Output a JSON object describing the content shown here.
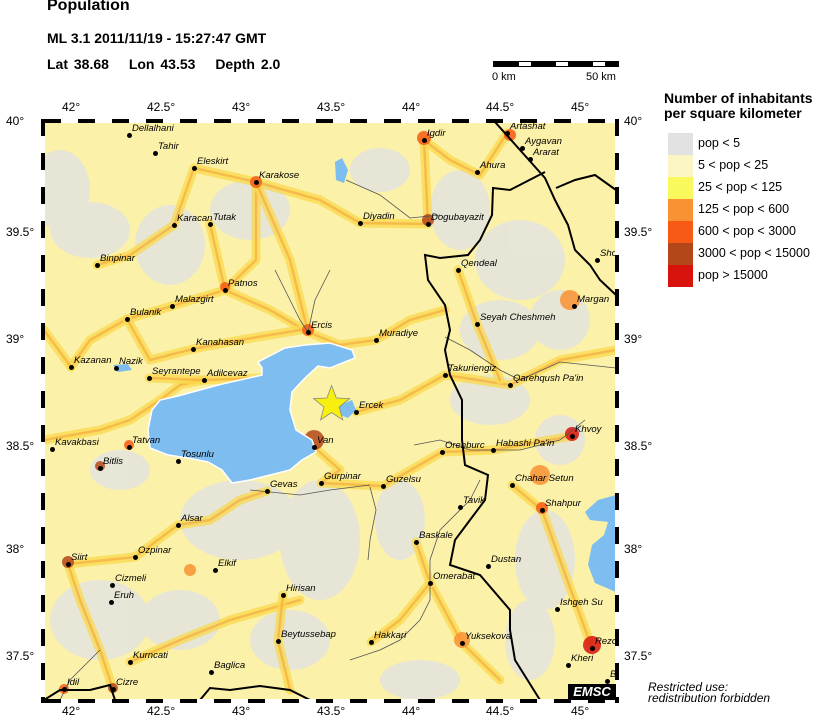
{
  "header": {
    "title": "Population",
    "event_line": "ML 3.1  2011/11/19 - 15:27:47 GMT",
    "lat": "Lat 38.68",
    "lon": "Lon  43.53",
    "depth": "Depth  2.0"
  },
  "scale": {
    "start_label": "0 km",
    "end_label": "50 km"
  },
  "axes": {
    "lon_ticks": [
      "42°",
      "42.5°",
      "43°",
      "43.5°",
      "44°",
      "44.5°",
      "45°"
    ],
    "lat_ticks": [
      "40°",
      "39.5°",
      "39°",
      "38.5°",
      "38°",
      "37.5°"
    ]
  },
  "epicenter": {
    "lat": 38.68,
    "lon": 43.53,
    "marker": "star-icon",
    "color": "#f7f00f"
  },
  "legend": {
    "title_line1": "Number of inhabitants",
    "title_line2": "per square kilometer",
    "items": [
      {
        "label": "pop < 5",
        "color": "#e2e2e2"
      },
      {
        "label": "5 < pop < 25",
        "color": "#fbf6c4"
      },
      {
        "label": "25 < pop < 125",
        "color": "#f9f85c"
      },
      {
        "label": "125 < pop < 600",
        "color": "#f99232"
      },
      {
        "label": "600 < pop < 3000",
        "color": "#f65a14"
      },
      {
        "label": "3000 < pop < 15000",
        "color": "#b4471a"
      },
      {
        "label": "pop > 15000",
        "color": "#d8130e"
      }
    ]
  },
  "water_color": "#7dbdf0",
  "cities": [
    "Dellalhani",
    "Tahir",
    "Eleskirt",
    "Karakose",
    "Karacan",
    "Tutak",
    "Binpinar",
    "Patnos",
    "Malazgirt",
    "Bulanik",
    "Ercis",
    "Kanahasan",
    "Kazanan",
    "Nazik",
    "Seyrantepe",
    "Adilcevaz",
    "Igdir",
    "Artashat",
    "Aygavan",
    "Ararat",
    "Ahura",
    "Diyadin",
    "Dogubayazit",
    "Qendeal",
    "Sho",
    "Margan",
    "Seyah Cheshmeh",
    "Muradiye",
    "Takuriengiz",
    "Qarehqush Pa'in",
    "Ercek",
    "Van",
    "Kavakbasi",
    "Tatvan",
    "Bitlis",
    "Tosunlu",
    "Gevas",
    "Gurpinar",
    "Guzelsu",
    "Orenburc",
    "Habashi Pa'in",
    "Khvoy",
    "Chahar Setun",
    "Tavik",
    "Shahpur",
    "Alsar",
    "Baskale",
    "Siirt",
    "Ozpinar",
    "Elkif",
    "Dustan",
    "Cizmeli",
    "Omerabat",
    "Eruh",
    "Hirisan",
    "Ishgeh Su",
    "Beytussebap",
    "Hakkari",
    "Yuksekova",
    "Rezo",
    "Kurncati",
    "Kheri",
    "Baglica",
    "Idil",
    "Cizre",
    "B"
  ],
  "logo": "EMSC",
  "restriction": {
    "line1": "Restricted use:",
    "line2": "redistribution forbidden"
  }
}
